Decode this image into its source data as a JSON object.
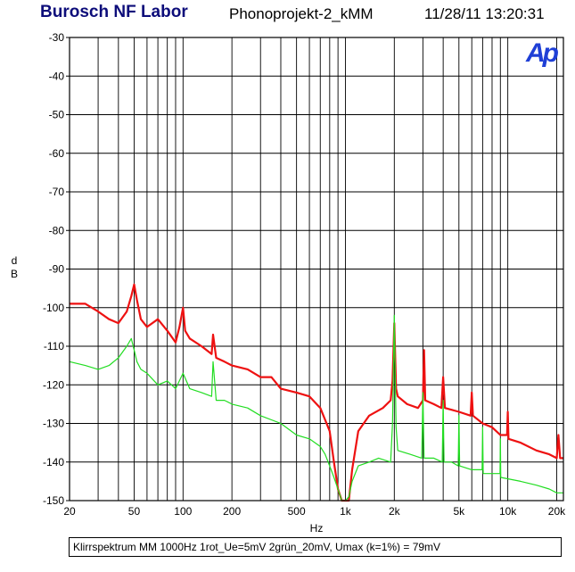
{
  "header": {
    "lab_name": "Burosch NF Labor",
    "project": "Phonoprojekt-2_kMM",
    "timestamp": "11/28/11 13:20:31"
  },
  "logo": {
    "text": "Ap",
    "color": "#1f3fd6"
  },
  "footer": {
    "caption": "Klirrspektrum MM 1000Hz 1rot_Ue=5mV 2grün_20mV, Umax (k=1%) = 79mV"
  },
  "chart_data": {
    "type": "line",
    "xscale": "log",
    "xlim": [
      20,
      22000
    ],
    "ylim": [
      -150,
      -30
    ],
    "xlabel": "Hz",
    "ylabel": "dB",
    "ylabel_lines": [
      "d",
      "B"
    ],
    "grid": true,
    "x_tick_labels": [
      {
        "value": 20,
        "label": "20"
      },
      {
        "value": 50,
        "label": "50"
      },
      {
        "value": 100,
        "label": "100"
      },
      {
        "value": 200,
        "label": "200"
      },
      {
        "value": 500,
        "label": "500"
      },
      {
        "value": 1000,
        "label": "1k"
      },
      {
        "value": 2000,
        "label": "2k"
      },
      {
        "value": 5000,
        "label": "5k"
      },
      {
        "value": 10000,
        "label": "10k"
      },
      {
        "value": 20000,
        "label": "20k"
      }
    ],
    "y_tick_labels": [
      {
        "value": -30,
        "label": "-30"
      },
      {
        "value": -40,
        "label": "-40"
      },
      {
        "value": -50,
        "label": "-50"
      },
      {
        "value": -60,
        "label": "-60"
      },
      {
        "value": -70,
        "label": "-70"
      },
      {
        "value": -80,
        "label": "-80"
      },
      {
        "value": -90,
        "label": "-90"
      },
      {
        "value": -100,
        "label": "-100"
      },
      {
        "value": -110,
        "label": "-110"
      },
      {
        "value": -120,
        "label": "-120"
      },
      {
        "value": -130,
        "label": "-130"
      },
      {
        "value": -140,
        "label": "-140"
      },
      {
        "value": -150,
        "label": "-150"
      }
    ],
    "series": [
      {
        "color": "#ee1111",
        "x": [
          20,
          25,
          30,
          35,
          40,
          45,
          48,
          50,
          52,
          55,
          60,
          70,
          80,
          90,
          95,
          100,
          103,
          110,
          130,
          150,
          153,
          160,
          180,
          200,
          250,
          300,
          350,
          400,
          500,
          600,
          700,
          800,
          850,
          900,
          950,
          1000,
          1050,
          1100,
          1200,
          1400,
          1700,
          1900,
          1950,
          2000,
          2050,
          2100,
          2400,
          2800,
          3000,
          3050,
          3100,
          3500,
          3900,
          4000,
          4100,
          5000,
          5900,
          6000,
          6100,
          7000,
          8000,
          9000,
          9900,
          10000,
          10100,
          12000,
          15000,
          18000,
          20000,
          20500,
          21000,
          22000
        ],
        "y": [
          -99,
          -99,
          -101,
          -103,
          -104,
          -101,
          -97,
          -94,
          -98,
          -103,
          -105,
          -103,
          -106,
          -109,
          -105,
          -100,
          -106,
          -108,
          -110,
          -112,
          -107,
          -113,
          -114,
          -115,
          -116,
          -118,
          -118,
          -121,
          -122,
          -123,
          -126,
          -132,
          -140,
          -147,
          -152,
          -153,
          -150,
          -142,
          -132,
          -128,
          -126,
          -124,
          -119,
          -104,
          -121,
          -123,
          -125,
          -126,
          -124,
          -111,
          -124,
          -125,
          -126,
          -118,
          -126,
          -127,
          -128,
          -122,
          -128,
          -130,
          -131,
          -133,
          -133,
          -127,
          -134,
          -135,
          -137,
          -138,
          -139,
          -133,
          -139,
          -139
        ]
      },
      {
        "color": "#22dd22",
        "x": [
          20,
          25,
          30,
          35,
          40,
          45,
          48,
          50,
          52,
          55,
          60,
          70,
          80,
          90,
          100,
          110,
          130,
          150,
          153,
          160,
          180,
          200,
          250,
          300,
          400,
          500,
          600,
          700,
          750,
          800,
          850,
          900,
          950,
          1000,
          1050,
          1100,
          1200,
          1400,
          1600,
          1900,
          1950,
          2000,
          2050,
          2100,
          2500,
          2950,
          3000,
          3050,
          3500,
          3950,
          4000,
          4050,
          4500,
          4950,
          5000,
          5050,
          6000,
          6950,
          7000,
          7050,
          8000,
          8950,
          9000,
          9050,
          12000,
          15000,
          18000,
          20000,
          22000
        ],
        "y": [
          -114,
          -115,
          -116,
          -115,
          -113,
          -110,
          -108,
          -111,
          -114,
          -116,
          -117,
          -120,
          -119,
          -121,
          -117,
          -121,
          -122,
          -123,
          -114,
          -124,
          -124,
          -125,
          -126,
          -128,
          -130,
          -133,
          -134,
          -136,
          -138,
          -141,
          -144,
          -147,
          -150,
          -153,
          -149,
          -145,
          -141,
          -140,
          -139,
          -140,
          -130,
          -102,
          -131,
          -137,
          -138,
          -139,
          -122,
          -139,
          -139,
          -140,
          -124,
          -140,
          -140,
          -141,
          -128,
          -141,
          -142,
          -142,
          -131,
          -143,
          -143,
          -143,
          -134,
          -144,
          -145,
          -146,
          -147,
          -148,
          -148
        ]
      }
    ]
  }
}
